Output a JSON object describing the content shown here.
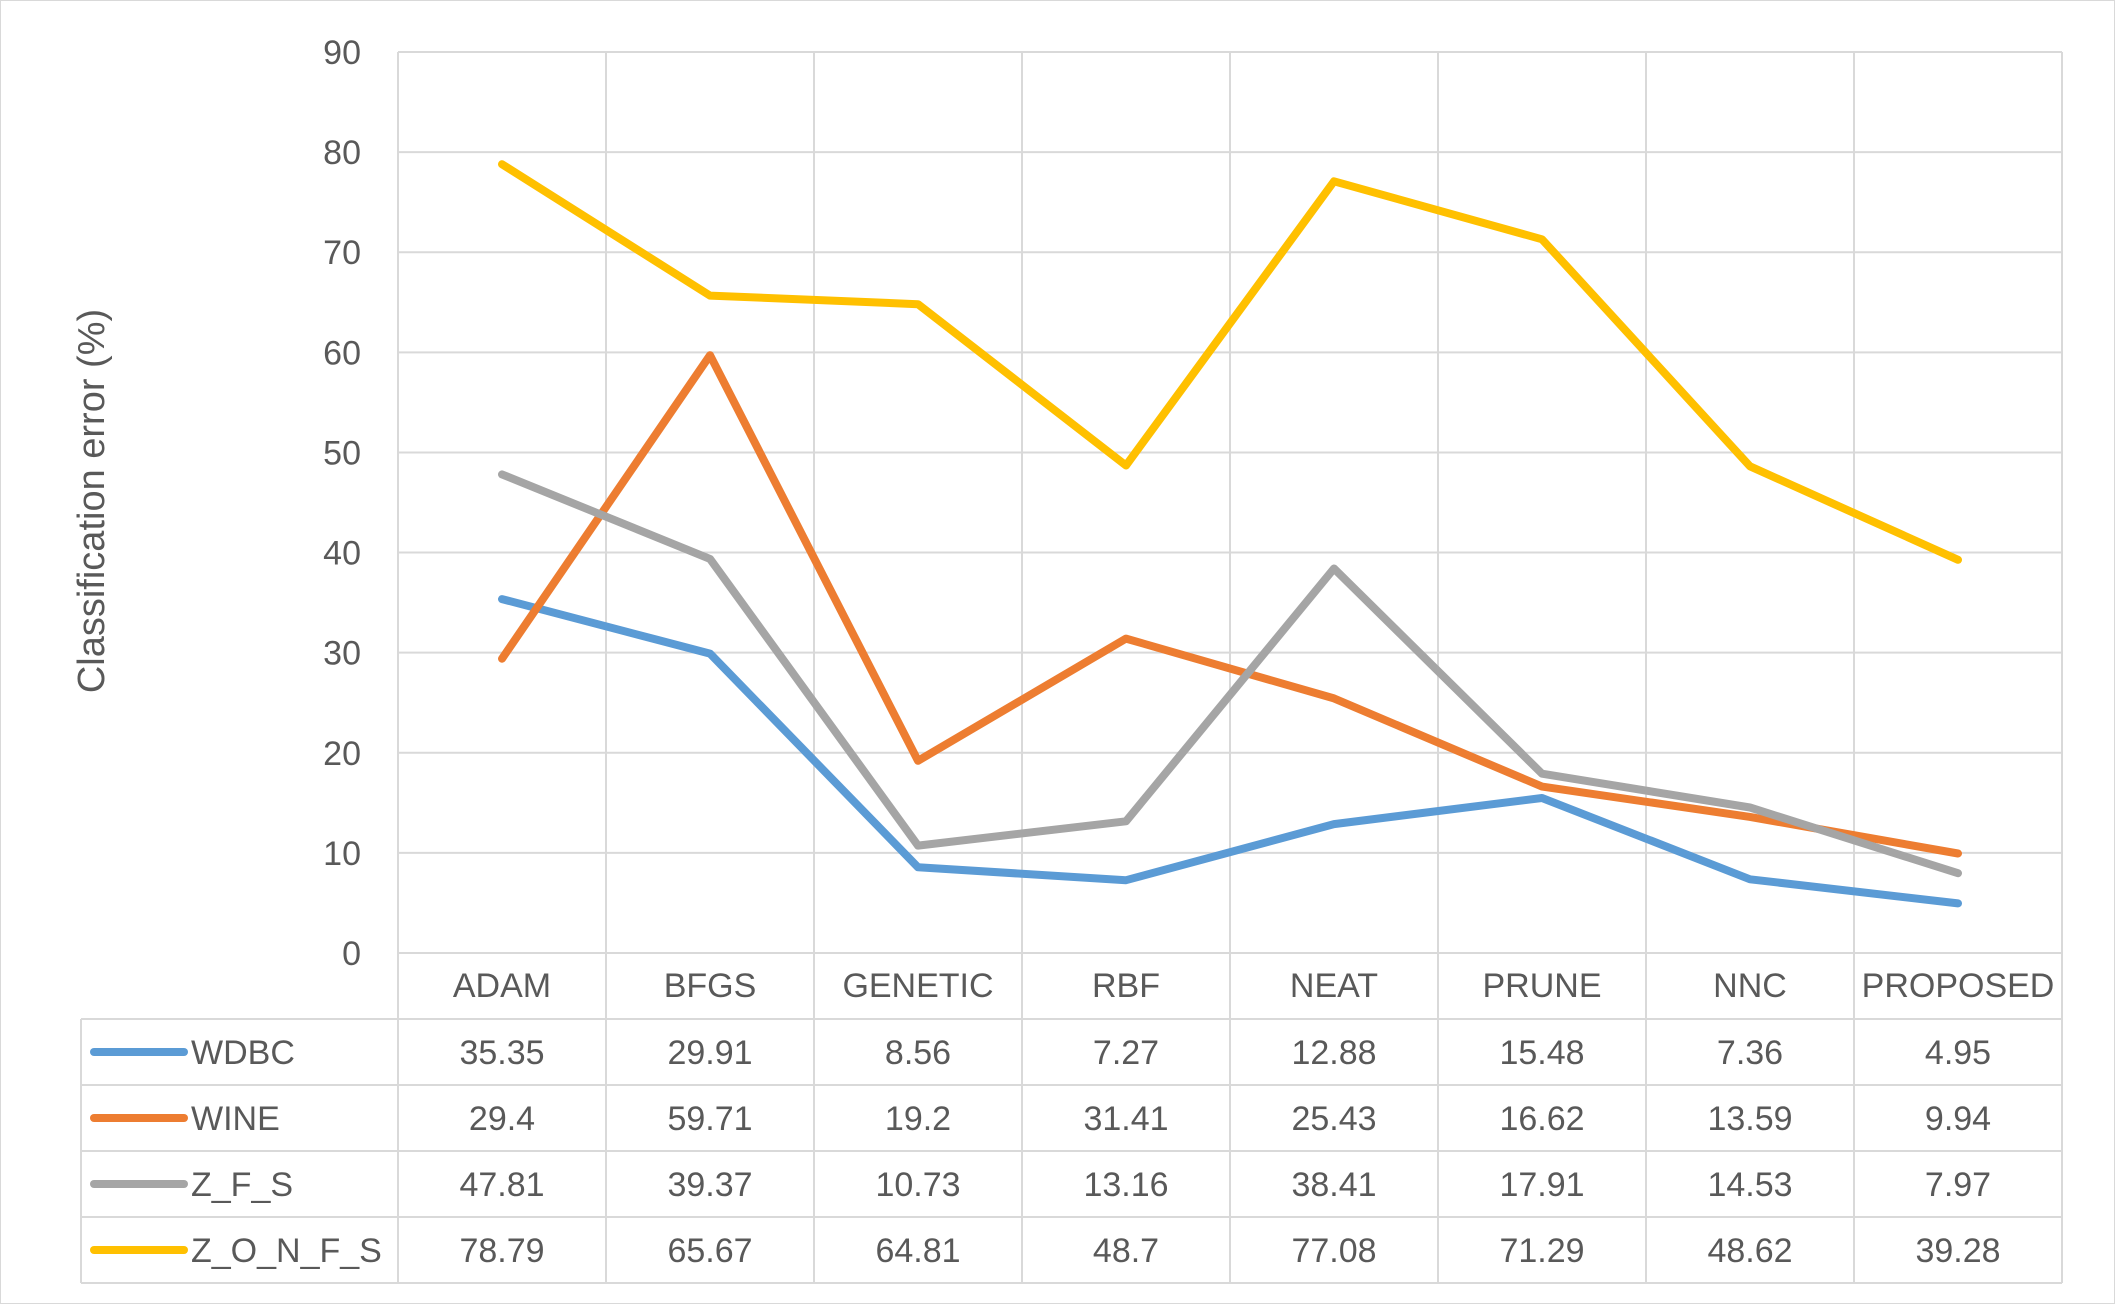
{
  "chart_data": {
    "type": "line",
    "ylabel": "Classification error (%)",
    "ylim": [
      0,
      90
    ],
    "yticks": [
      0,
      10,
      20,
      30,
      40,
      50,
      60,
      70,
      80,
      90
    ],
    "grid": true,
    "legend": "data-table",
    "categories": [
      "ADAM",
      "BFGS",
      "GENETIC",
      "RBF",
      "NEAT",
      "PRUNE",
      "NNC",
      "PROPOSED"
    ],
    "series": [
      {
        "name": "WDBC",
        "color": "#5b9bd5",
        "values": [
          35.35,
          29.91,
          8.56,
          7.27,
          12.88,
          15.48,
          7.36,
          4.95
        ]
      },
      {
        "name": "WINE",
        "color": "#ed7d31",
        "values": [
          29.4,
          59.71,
          19.2,
          31.41,
          25.43,
          16.62,
          13.59,
          9.94
        ]
      },
      {
        "name": "Z_F_S",
        "color": "#a5a5a5",
        "values": [
          47.81,
          39.37,
          10.73,
          13.16,
          38.41,
          17.91,
          14.53,
          7.97
        ]
      },
      {
        "name": "Z_O_N_F_S",
        "color": "#ffc000",
        "values": [
          78.79,
          65.67,
          64.81,
          48.7,
          77.08,
          71.29,
          48.62,
          39.28
        ]
      }
    ],
    "table_cells": [
      [
        "35.35",
        "29.91",
        "8.56",
        "7.27",
        "12.88",
        "15.48",
        "7.36",
        "4.95"
      ],
      [
        "29.4",
        "59.71",
        "19.2",
        "31.41",
        "25.43",
        "16.62",
        "13.59",
        "9.94"
      ],
      [
        "47.81",
        "39.37",
        "10.73",
        "13.16",
        "38.41",
        "17.91",
        "14.53",
        "7.97"
      ],
      [
        "78.79",
        "65.67",
        "64.81",
        "48.7",
        "77.08",
        "71.29",
        "48.62",
        "39.28"
      ]
    ]
  }
}
